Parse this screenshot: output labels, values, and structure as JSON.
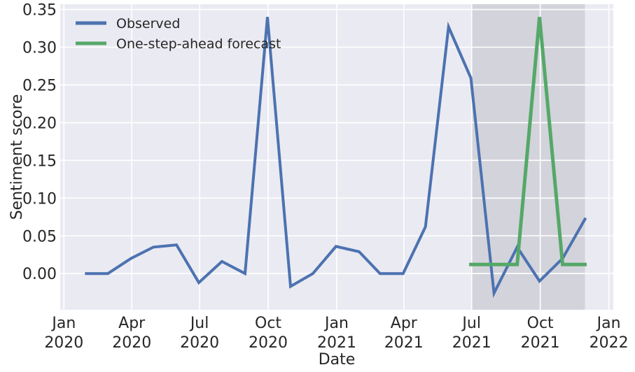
{
  "chart_data": {
    "type": "line",
    "xlabel": "Date",
    "ylabel": "Sentiment score",
    "xlim": [
      "2019-12-27",
      "2022-01-07"
    ],
    "ylim": [
      -0.048,
      0.357
    ],
    "grid": true,
    "legend_position": "top-left",
    "shaded_region": {
      "start": "2021-07-01",
      "end": "2021-11-30"
    },
    "x_ticks": [
      {
        "date": "2020-01-01",
        "line1": "Jan",
        "line2": "2020"
      },
      {
        "date": "2020-04-01",
        "line1": "Apr",
        "line2": "2020"
      },
      {
        "date": "2020-07-01",
        "line1": "Jul",
        "line2": "2020"
      },
      {
        "date": "2020-10-01",
        "line1": "Oct",
        "line2": "2020"
      },
      {
        "date": "2021-01-01",
        "line1": "Jan",
        "line2": "2021"
      },
      {
        "date": "2021-04-01",
        "line1": "Apr",
        "line2": "2021"
      },
      {
        "date": "2021-07-01",
        "line1": "Jul",
        "line2": "2021"
      },
      {
        "date": "2021-10-01",
        "line1": "Oct",
        "line2": "2021"
      },
      {
        "date": "2022-01-01",
        "line1": "Jan",
        "line2": "2022"
      }
    ],
    "y_ticks": [
      "0.00",
      "0.05",
      "0.10",
      "0.15",
      "0.20",
      "0.25",
      "0.30",
      "0.35"
    ],
    "series": [
      {
        "name": "Observed",
        "color": "#4c72b0",
        "points": [
          [
            "2020-01-31",
            0.0
          ],
          [
            "2020-02-29",
            0.0
          ],
          [
            "2020-03-31",
            0.02
          ],
          [
            "2020-04-30",
            0.035
          ],
          [
            "2020-05-31",
            0.038
          ],
          [
            "2020-06-30",
            -0.012
          ],
          [
            "2020-07-31",
            0.016
          ],
          [
            "2020-08-31",
            0.0
          ],
          [
            "2020-09-30",
            0.34
          ],
          [
            "2020-10-31",
            -0.017
          ],
          [
            "2020-11-30",
            0.0
          ],
          [
            "2020-12-31",
            0.036
          ],
          [
            "2021-01-31",
            0.029
          ],
          [
            "2021-02-28",
            0.0
          ],
          [
            "2021-03-31",
            0.0
          ],
          [
            "2021-04-30",
            0.062
          ],
          [
            "2021-05-31",
            0.327
          ],
          [
            "2021-06-30",
            0.259
          ],
          [
            "2021-07-31",
            -0.026
          ],
          [
            "2021-08-31",
            0.035
          ],
          [
            "2021-09-30",
            -0.01
          ],
          [
            "2021-10-31",
            0.02
          ],
          [
            "2021-11-30",
            0.072
          ]
        ]
      },
      {
        "name": "One-step-ahead forecast",
        "color": "#55a868",
        "points": [
          [
            "2021-06-30",
            0.012
          ],
          [
            "2021-07-31",
            0.012
          ],
          [
            "2021-08-31",
            0.012
          ],
          [
            "2021-09-30",
            0.34
          ],
          [
            "2021-10-31",
            0.012
          ],
          [
            "2021-11-30",
            0.012
          ]
        ]
      }
    ]
  }
}
